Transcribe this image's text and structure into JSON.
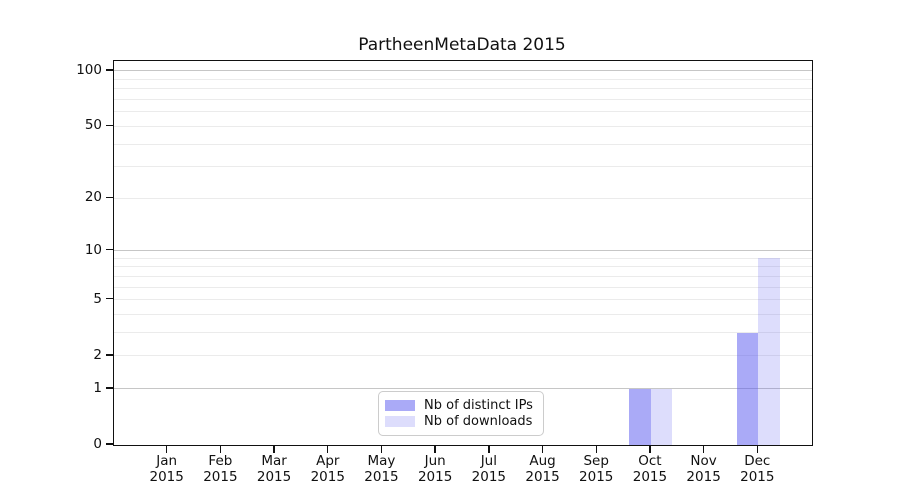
{
  "title": "PartheenMetaData 2015",
  "chart_data": {
    "type": "bar",
    "title": "PartheenMetaData 2015",
    "categories": [
      "Jan 2015",
      "Feb 2015",
      "Mar 2015",
      "Apr 2015",
      "May 2015",
      "Jun 2015",
      "Jul 2015",
      "Aug 2015",
      "Sep 2015",
      "Oct 2015",
      "Nov 2015",
      "Dec 2015"
    ],
    "series": [
      {
        "name": "Nb of distinct IPs",
        "color": "rgba(85,85,240,0.5)",
        "values": [
          0,
          0,
          0,
          0,
          0,
          0,
          0,
          0,
          0,
          1,
          0,
          3
        ]
      },
      {
        "name": "Nb of downloads",
        "color": "rgba(85,85,240,0.2)",
        "values": [
          0,
          0,
          0,
          0,
          0,
          0,
          0,
          0,
          0,
          1,
          0,
          9
        ]
      }
    ],
    "xlabel": "",
    "ylabel": "",
    "yscale": "log1p",
    "ylim": [
      0,
      113
    ],
    "ytick_values": [
      0,
      1,
      2,
      5,
      10,
      20,
      50,
      100
    ],
    "ytick_labels": [
      "0",
      "1",
      "2",
      "5",
      "10",
      "20",
      "50",
      "100"
    ],
    "major_grid_values": [
      1,
      10,
      100
    ],
    "minor_grid_values": [
      2,
      3,
      4,
      5,
      6,
      7,
      8,
      9,
      20,
      30,
      40,
      50,
      60,
      70,
      80,
      90
    ],
    "grid": "horizontal",
    "legend_position": "lower-center-inside",
    "bar_group_width_fraction": 0.8,
    "colors": {
      "bar_distinct_ips": "#aaaaf7",
      "bar_downloads": "#dcdcfa",
      "major_grid": "#c6c6c6",
      "minor_grid": "#ebebeb",
      "axis": "#111111"
    }
  }
}
